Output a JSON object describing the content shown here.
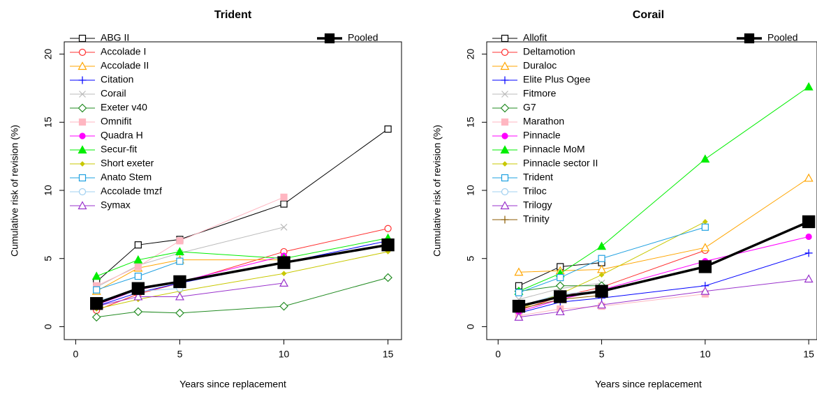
{
  "chart_data": [
    {
      "type": "line",
      "title": "Trident",
      "x_label": "Years since replacement",
      "y_label": "Cumulative risk of revision (%)",
      "x": [
        1,
        3,
        5,
        10,
        15
      ],
      "xlim": [
        -0.55,
        15.65
      ],
      "ylim": [
        -0.95,
        20.9
      ],
      "xticks": [
        0,
        5,
        10,
        15
      ],
      "yticks": [
        0,
        5,
        10,
        15,
        20
      ],
      "legend_corner": "top-left",
      "series": [
        {
          "name": "ABG II",
          "color": "#000000",
          "marker": "square-open",
          "values": [
            3.3,
            6.0,
            6.4,
            9.0,
            14.5
          ]
        },
        {
          "name": "Accolade I",
          "color": "#ff3030",
          "marker": "circle-open",
          "values": [
            1.2,
            2.4,
            3.2,
            5.5,
            7.2
          ]
        },
        {
          "name": "Accolade II",
          "color": "#ffa500",
          "marker": "triangle-open",
          "values": [
            2.6,
            4.3,
            4.9,
            4.9,
            null
          ]
        },
        {
          "name": "Citation",
          "color": "#0000ff",
          "marker": "plus",
          "values": [
            1.5,
            2.5,
            3.2,
            4.7,
            6.3
          ]
        },
        {
          "name": "Corail",
          "color": "#bbbbbb",
          "marker": "x",
          "values": [
            2.9,
            4.5,
            5.4,
            7.3,
            null
          ]
        },
        {
          "name": "Exeter v40",
          "color": "#228b22",
          "marker": "diamond-open",
          "values": [
            0.7,
            1.1,
            1.0,
            1.5,
            3.6
          ]
        },
        {
          "name": "Omnifit",
          "color": "#ffb6c1",
          "marker": "square",
          "values": [
            3.0,
            4.4,
            6.3,
            9.5,
            null
          ]
        },
        {
          "name": "Quadra H",
          "color": "#ff00ff",
          "marker": "dot",
          "values": [
            1.6,
            2.7,
            3.3,
            5.2,
            null
          ]
        },
        {
          "name": "Secur-fit",
          "color": "#00ee00",
          "marker": "triangle",
          "values": [
            3.7,
            4.9,
            5.5,
            5.0,
            6.5
          ]
        },
        {
          "name": "Short exeter",
          "color": "#c8c800",
          "marker": "diamond",
          "values": [
            1.3,
            2.0,
            2.6,
            3.9,
            5.5
          ]
        },
        {
          "name": "Anato Stem",
          "color": "#1ea0e0",
          "marker": "square-open",
          "values": [
            2.7,
            3.7,
            4.8,
            null,
            null
          ]
        },
        {
          "name": "Accolade tmzf",
          "color": "#a0d0f0",
          "marker": "circle-open",
          "values": [
            1.9,
            2.6,
            2.8,
            null,
            null
          ]
        },
        {
          "name": "Symax",
          "color": "#9932cc",
          "marker": "triangle-open",
          "values": [
            1.5,
            2.2,
            2.2,
            3.2,
            null
          ]
        },
        {
          "name": "Pooled",
          "color": "#000000",
          "marker": "square",
          "line_width": 3.5,
          "legend_corner": "top-right",
          "values": [
            1.7,
            2.8,
            3.3,
            4.7,
            6.0
          ]
        }
      ]
    },
    {
      "type": "line",
      "title": "Corail",
      "x_label": "Years since replacement",
      "y_label": "Cumulative risk of revision (%)",
      "x": [
        1,
        3,
        5,
        10,
        15
      ],
      "xlim": [
        -0.55,
        15.4
      ],
      "ylim": [
        -0.95,
        20.9
      ],
      "xticks": [
        0,
        5,
        10,
        15
      ],
      "yticks": [
        0,
        5,
        10,
        15,
        20
      ],
      "legend_corner": "top-left",
      "series": [
        {
          "name": "Allofit",
          "color": "#000000",
          "marker": "square-open",
          "values": [
            3.0,
            4.4,
            4.7,
            null,
            null
          ]
        },
        {
          "name": "Deltamotion",
          "color": "#ff3030",
          "marker": "circle-open",
          "values": [
            1.2,
            2.2,
            2.9,
            5.6,
            null
          ]
        },
        {
          "name": "Duraloc",
          "color": "#ffa500",
          "marker": "triangle-open",
          "values": [
            4.0,
            4.1,
            4.2,
            5.8,
            10.9
          ]
        },
        {
          "name": "Elite Plus Ogee",
          "color": "#0000ff",
          "marker": "plus",
          "values": [
            1.0,
            1.8,
            2.1,
            3.0,
            5.4
          ]
        },
        {
          "name": "Fitmore",
          "color": "#bbbbbb",
          "marker": "x",
          "values": [
            2.0,
            2.8,
            3.2,
            null,
            null
          ]
        },
        {
          "name": "G7",
          "color": "#228b22",
          "marker": "diamond-open",
          "values": [
            2.6,
            3.0,
            3.0,
            null,
            null
          ]
        },
        {
          "name": "Marathon",
          "color": "#ffb6c1",
          "marker": "square",
          "values": [
            0.8,
            1.3,
            1.5,
            2.4,
            null
          ]
        },
        {
          "name": "Pinnacle",
          "color": "#ff00ff",
          "marker": "dot",
          "values": [
            1.1,
            2.0,
            2.7,
            4.8,
            6.6
          ]
        },
        {
          "name": "Pinnacle MoM",
          "color": "#00ee00",
          "marker": "triangle",
          "values": [
            2.6,
            3.9,
            5.9,
            12.3,
            17.6
          ]
        },
        {
          "name": "Pinnacle sector II",
          "color": "#c8c800",
          "marker": "diamond",
          "values": [
            1.3,
            2.4,
            3.8,
            7.7,
            null
          ]
        },
        {
          "name": "Trident",
          "color": "#1ea0e0",
          "marker": "square-open",
          "values": [
            2.5,
            3.6,
            5.0,
            7.3,
            null
          ]
        },
        {
          "name": "Triloc",
          "color": "#a0d0f0",
          "marker": "circle-open",
          "values": [
            1.5,
            2.4,
            2.6,
            null,
            null
          ]
        },
        {
          "name": "Trilogy",
          "color": "#9932cc",
          "marker": "triangle-open",
          "values": [
            0.7,
            1.1,
            1.6,
            2.6,
            3.5
          ]
        },
        {
          "name": "Trinity",
          "color": "#8b5a00",
          "marker": "plus",
          "values": [
            1.3,
            2.0,
            2.3,
            null,
            null
          ]
        },
        {
          "name": "Pooled",
          "color": "#000000",
          "marker": "square",
          "line_width": 3.5,
          "legend_corner": "top-right",
          "values": [
            1.5,
            2.2,
            2.6,
            4.4,
            7.7
          ]
        }
      ]
    }
  ]
}
